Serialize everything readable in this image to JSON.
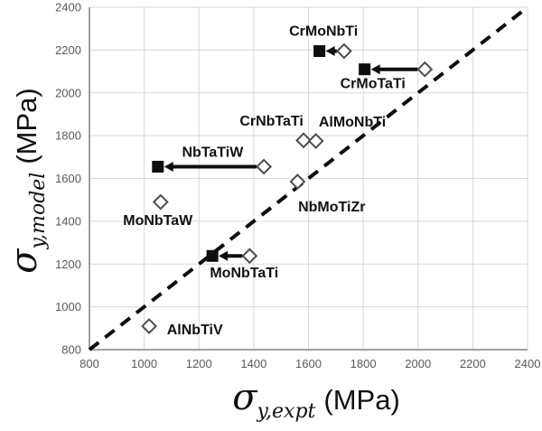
{
  "figure": {
    "background": "#ffffff"
  },
  "chart_data": {
    "type": "scatter",
    "title": "",
    "xlabel": {
      "sigma": "σ",
      "subscript": "y,expt",
      "unit": "(MPa)"
    },
    "ylabel": {
      "sigma": "σ",
      "subscript": "y,model",
      "unit": "(MPa)"
    },
    "xlim": [
      800,
      2400
    ],
    "ylim": [
      800,
      2400
    ],
    "xticks": [
      800,
      1000,
      1200,
      1400,
      1600,
      1800,
      2000,
      2200,
      2400
    ],
    "yticks": [
      800,
      1000,
      1200,
      1400,
      1600,
      1800,
      2000,
      2200,
      2400
    ],
    "grid": true,
    "legend": null,
    "identity_line": {
      "style": "dashed",
      "from": [
        800,
        800
      ],
      "to": [
        2400,
        2400
      ],
      "color": "#0d0d0d"
    },
    "series": [
      {
        "name": "open-diamond-points",
        "marker": "open-diamond",
        "points": [
          [
            1730,
            2195
          ],
          [
            2025,
            2110
          ],
          [
            1582,
            1778
          ],
          [
            1627,
            1775
          ],
          [
            1437,
            1655
          ],
          [
            1060,
            1490
          ],
          [
            1560,
            1585
          ],
          [
            1385,
            1238
          ],
          [
            1018,
            910
          ]
        ]
      },
      {
        "name": "filled-square-points",
        "marker": "filled-square",
        "points": [
          [
            1640,
            2195
          ],
          [
            1805,
            2110
          ],
          [
            1050,
            1655
          ],
          [
            1249,
            1238
          ]
        ]
      }
    ],
    "alloys": [
      {
        "label": "CrMoNbTi",
        "diamond": [
          1730,
          2195
        ],
        "square": [
          1640,
          2195
        ],
        "arrow": true,
        "label_pos": [
          1655,
          2290
        ]
      },
      {
        "label": "CrMoTaTi",
        "diamond": [
          2025,
          2110
        ],
        "square": [
          1805,
          2110
        ],
        "arrow": true,
        "label_pos": [
          1835,
          2045
        ]
      },
      {
        "label": "CrNbTaTi",
        "diamond": [
          1582,
          1778
        ],
        "square": null,
        "arrow": false,
        "label_pos": [
          1465,
          1870
        ]
      },
      {
        "label": "AlMoNbTi",
        "diamond": [
          1627,
          1775
        ],
        "square": null,
        "arrow": false,
        "label_pos": [
          1760,
          1865
        ]
      },
      {
        "label": "NbTaTiW",
        "diamond": [
          1437,
          1655
        ],
        "square": [
          1050,
          1655
        ],
        "arrow": true,
        "label_pos": [
          1250,
          1725
        ]
      },
      {
        "label": "MoNbTaW",
        "diamond": [
          1060,
          1490
        ],
        "square": null,
        "arrow": false,
        "label_pos": [
          1050,
          1405
        ]
      },
      {
        "label": "NbMoTiZr",
        "diamond": [
          1560,
          1585
        ],
        "square": null,
        "arrow": false,
        "label_pos": [
          1685,
          1470
        ]
      },
      {
        "label": "MoNbTaTi",
        "diamond": [
          1385,
          1238
        ],
        "square": [
          1249,
          1238
        ],
        "arrow": true,
        "label_pos": [
          1365,
          1160
        ]
      },
      {
        "label": "AlNbTiV",
        "diamond": [
          1018,
          910
        ],
        "square": null,
        "arrow": false,
        "label_pos": [
          1185,
          895
        ]
      }
    ],
    "colors": {
      "grid": "#d9d9d9",
      "axis_line": "#808080",
      "tick_label": "#595959",
      "marker_fill": "#0d0d0d",
      "arrow": "#0d0d0d",
      "diamond_stroke": "#4d4d4d",
      "diamond_fill": "#ffffff",
      "alloy_label": "#111111"
    }
  }
}
